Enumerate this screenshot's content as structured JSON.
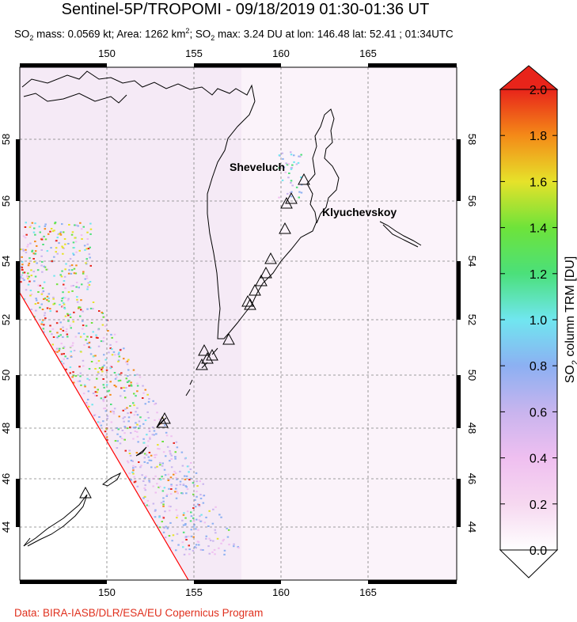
{
  "header": {
    "title": "Sentinel-5P/TROPOMI - 09/18/2019 01:30-01:36 UT",
    "so2_mass_prefix": "SO",
    "so2_mass_text": " mass: 0.0569 kt; Area: 1262 km",
    "so2_max_prefix": "; SO",
    "so2_max_text": " max: 3.24 DU at lon: 146.48 lat: 52.41 ; 01:34UTC",
    "sub2": "2",
    "sup2": "2"
  },
  "map": {
    "lon_ticks": [
      "150",
      "155",
      "160",
      "165"
    ],
    "lat_ticks": [
      "44",
      "46",
      "48",
      "50",
      "52",
      "54",
      "56",
      "58"
    ],
    "volcano_labels": [
      "Sheveluch",
      "Klyuchevskoy"
    ],
    "colors": {
      "coast": "#000000",
      "swath_edge": "#ff0000",
      "grid": "#808080"
    }
  },
  "colorbar": {
    "tick_labels": [
      "2.0",
      "1.8",
      "1.6",
      "1.4",
      "1.2",
      "1.0",
      "0.8",
      "0.6",
      "0.4",
      "0.2",
      "0.0"
    ],
    "label_prefix": "SO",
    "label_sub": "2",
    "label_text": " column TRM [DU]",
    "range": [
      0.0,
      2.0
    ]
  },
  "footer": {
    "credit": "Data: BIRA-IASB/DLR/ESA/EU Copernicus Program"
  }
}
